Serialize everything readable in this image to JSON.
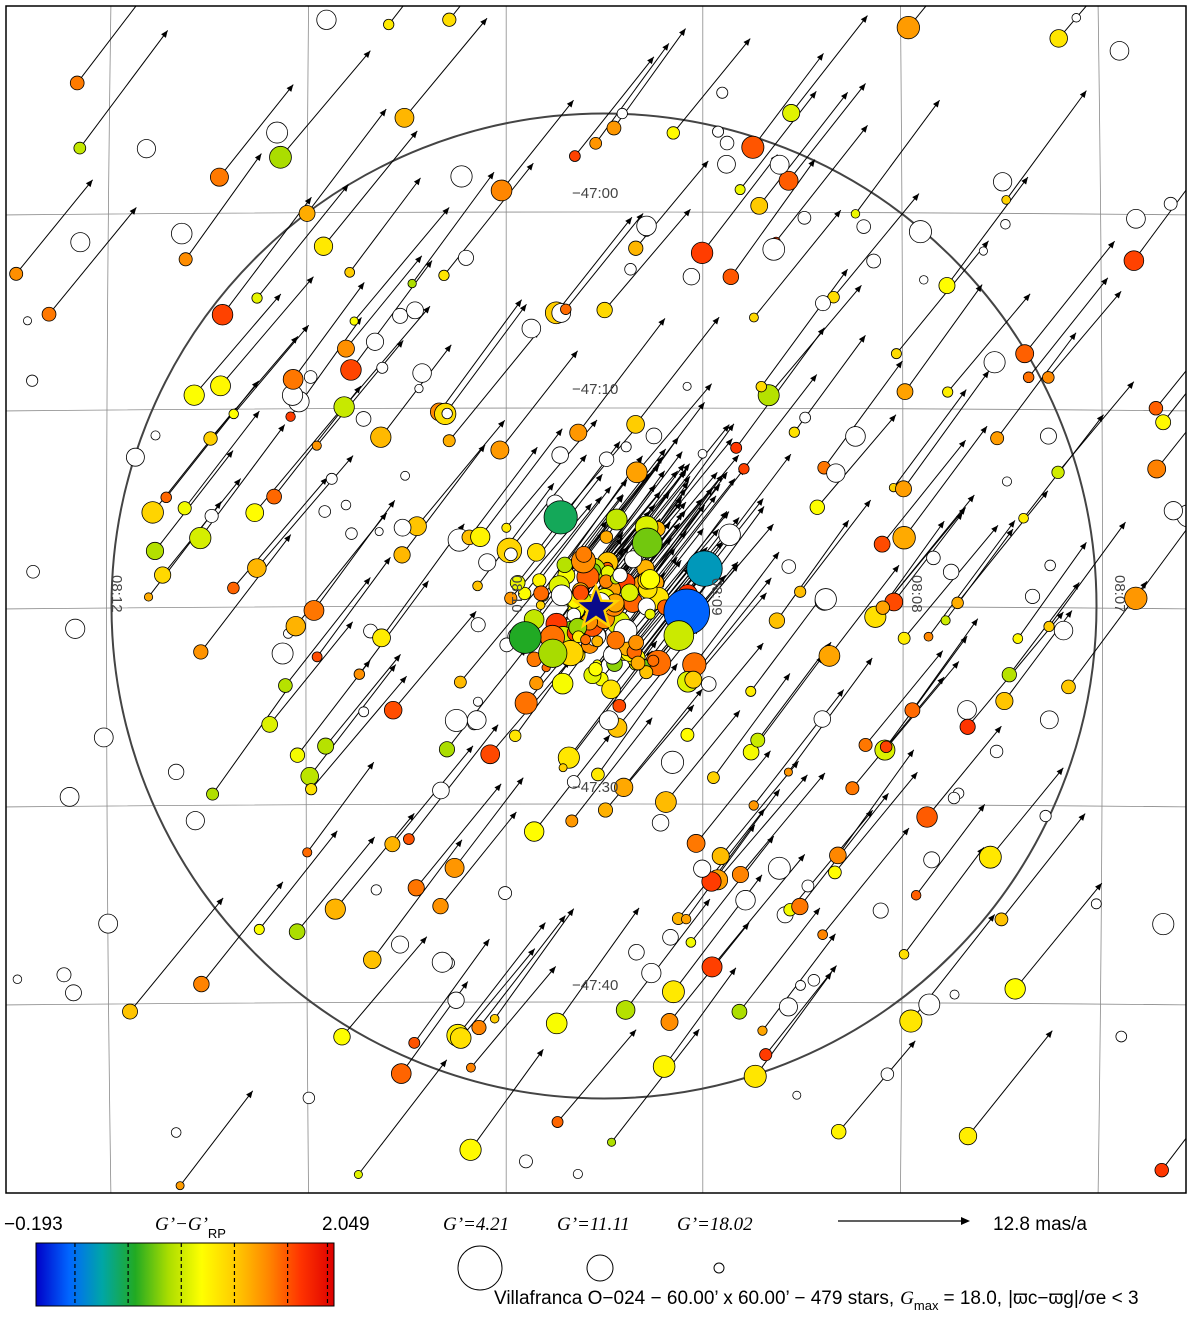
{
  "chart_data": {
    "type": "scatter",
    "title": "",
    "footer": {
      "prefix": "Villafranca O−024 − 60.00’ x 60.00’ − 479 stars,",
      "gmax_symbol": "G",
      "gmax_sub": "max",
      "gmax_value": "= 18.0,",
      "criterion": "|ϖc−ϖg|/σe < 3"
    },
    "colorbar": {
      "min_label": "−0.193",
      "max_label": "2.049",
      "quantity": "G’−G’",
      "quantity_sub": "RP",
      "min": -0.193,
      "max": 2.049,
      "ticks": [
        0.1,
        0.5,
        0.9,
        1.3,
        1.7,
        2.0
      ],
      "stops": [
        "#0000c8",
        "#0066ff",
        "#00a6a6",
        "#22aa22",
        "#aadd00",
        "#ffff00",
        "#ffcc00",
        "#ff8800",
        "#ff3300",
        "#dd0000"
      ]
    },
    "size_legend": {
      "labels": [
        "G’=4.21",
        "G’=11.11",
        "G’=18.02"
      ],
      "values": [
        4.21,
        11.11,
        18.02
      ]
    },
    "vector_legend": {
      "label": "12.8 mas/a",
      "value": 12.8
    },
    "axes": {
      "ra_ticks": [
        "08:12",
        "08:10",
        "08:09",
        "08:08",
        "08:07"
      ],
      "dec_ticks": [
        "−47:00",
        "−47:10",
        "−47:30",
        "−47:40"
      ],
      "field_size_arcmin": [
        60,
        60
      ],
      "center_dec_deg": -47.3,
      "projection": "tangent",
      "grid": true
    },
    "circle_radius_arcmin": 25,
    "stars": [
      {
        "x": -4.2,
        "y": -0.3,
        "g": 5.0,
        "c": 0.05,
        "v": true
      },
      {
        "x": -5.1,
        "y": 1.9,
        "g": 8.5,
        "c": 0.25,
        "v": true
      },
      {
        "x": 2.2,
        "y": 4.5,
        "g": 9.3,
        "c": 0.45,
        "v": true
      },
      {
        "x": -3.8,
        "y": -1.5,
        "g": 10.5,
        "c": 0.9,
        "v": true
      },
      {
        "x": 4.0,
        "y": -1.6,
        "g": 9.8,
        "c": 0.55,
        "v": true
      },
      {
        "x": -2.2,
        "y": 3.2,
        "g": 10.5,
        "c": 0.7,
        "v": true
      },
      {
        "x": 2.6,
        "y": -2.4,
        "g": 11.0,
        "c": 0.8,
        "v": true
      }
    ]
  }
}
